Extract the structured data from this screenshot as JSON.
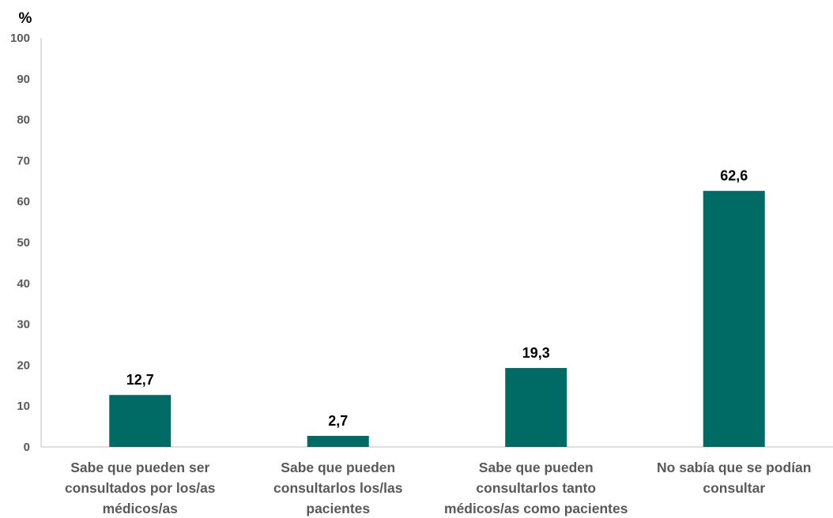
{
  "chart_data": {
    "type": "bar",
    "ylabel": "%",
    "ylim": [
      0,
      100
    ],
    "yticks": [
      0,
      10,
      20,
      30,
      40,
      50,
      60,
      70,
      80,
      90,
      100
    ],
    "grid": false,
    "categories": [
      [
        "Sabe que pueden ser",
        "consultados por los/as",
        "médicos/as"
      ],
      [
        "Sabe que pueden",
        "consultarlos los/las",
        "pacientes"
      ],
      [
        "Sabe que pueden",
        "consultarlos tanto",
        "médicos/as como pacientes"
      ],
      [
        "No sabía que se podían",
        "consultar"
      ]
    ],
    "values": [
      12.7,
      2.7,
      19.3,
      62.6
    ],
    "data_labels": [
      "12,7",
      "2,7",
      "19,3",
      "62,6"
    ],
    "colors": {
      "bar": "#006B65",
      "axis": "#BFBFBF",
      "tick_text": "#595959",
      "value_text": "#000000"
    }
  }
}
